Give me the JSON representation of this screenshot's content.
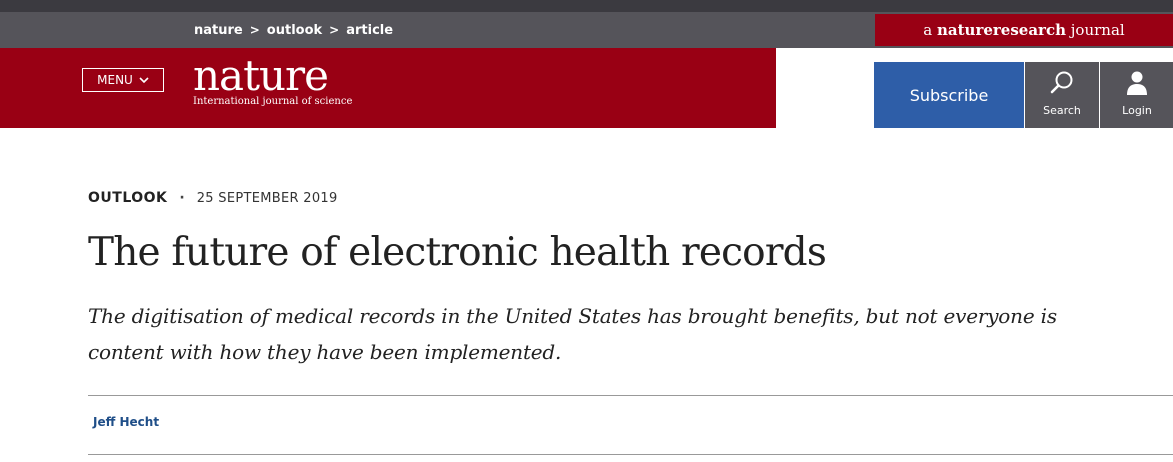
{
  "header": {
    "breadcrumb": [
      "nature",
      "outlook",
      "article"
    ],
    "breadcrumb_separator": ">",
    "badge": {
      "prefix": "a ",
      "strong": "natureresearch",
      "suffix": " journal"
    },
    "menu_label": "MENU",
    "logo": {
      "wordmark": "nature",
      "tagline": "International journal of science"
    },
    "subscribe_label": "Subscribe",
    "search_label": "Search",
    "login_label": "Login"
  },
  "article": {
    "type": "OUTLOOK",
    "date": "25 SEPTEMBER 2019",
    "title": "The future of electronic health records",
    "standfirst": "The digitisation of medical records in the United States has brought benefits, but not everyone is content with how they have been implemented.",
    "author": "Jeff Hecht"
  },
  "colors": {
    "brand_red": "#990014",
    "dark_grey": "#55545a",
    "subscribe_blue": "#2e5ea8",
    "author_link": "#1f4e88"
  },
  "icons": [
    "chevron-down-icon",
    "search-icon",
    "user-icon"
  ]
}
